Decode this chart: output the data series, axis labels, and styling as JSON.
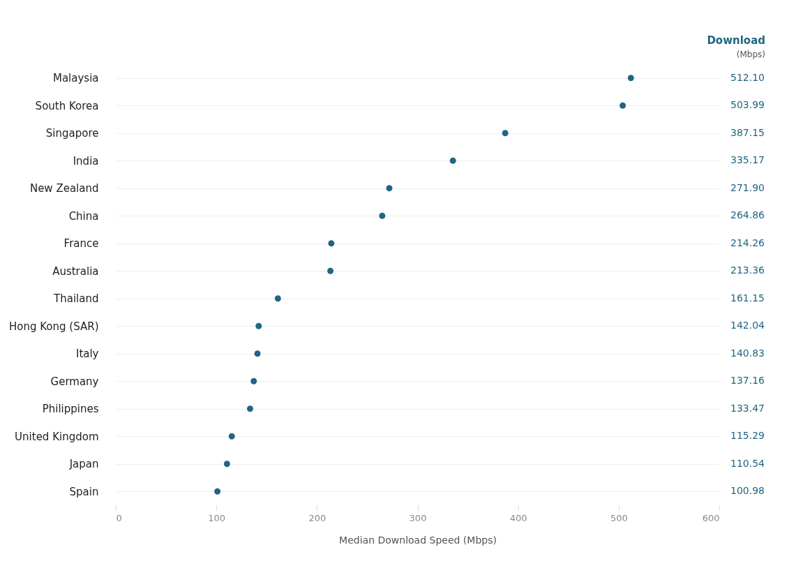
{
  "chart_data": {
    "type": "scatter",
    "orientation": "horizontal",
    "xlabel": "Median Download Speed (Mbps)",
    "categories": [
      "Malaysia",
      "South Korea",
      "Singapore",
      "India",
      "New Zealand",
      "China",
      "France",
      "Australia",
      "Thailand",
      "Hong Kong (SAR)",
      "Italy",
      "Germany",
      "Philippines",
      "United Kingdom",
      "Japan",
      "Spain"
    ],
    "values": [
      512.1,
      503.99,
      387.15,
      335.17,
      271.9,
      264.86,
      214.26,
      213.36,
      161.15,
      142.04,
      140.83,
      137.16,
      133.47,
      115.29,
      110.54,
      100.98
    ],
    "value_labels": [
      "512.10",
      "503.99",
      "387.15",
      "335.17",
      "271.90",
      "264.86",
      "214.26",
      "213.36",
      "161.15",
      "142.04",
      "140.83",
      "137.16",
      "133.47",
      "115.29",
      "110.54",
      "100.98"
    ],
    "color": "#1f6683",
    "marker": "circle",
    "grid": "y",
    "xlim": [
      0,
      600
    ],
    "xticks": [
      0,
      100,
      200,
      300,
      400,
      500,
      600
    ],
    "annotations": [
      "Download",
      "(Mbps)"
    ]
  }
}
